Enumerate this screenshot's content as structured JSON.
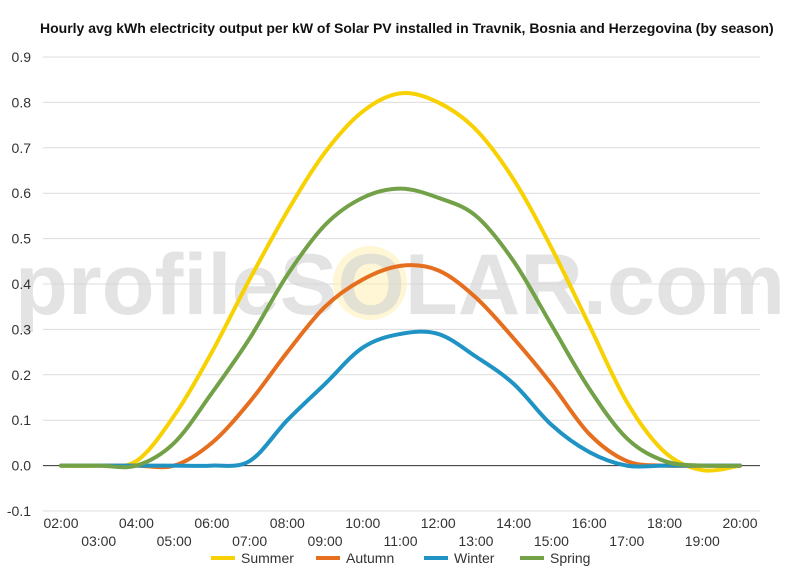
{
  "watermark": {
    "brand": "profileSOLAR.com"
  },
  "chart_data": {
    "type": "line",
    "title": "Hourly avg kWh electricity output per kW of Solar PV installed in Travnik, Bosnia and Herzegovina (by season)",
    "xlabel": "",
    "ylabel": "",
    "ylim": [
      -0.1,
      0.9
    ],
    "y_ticks": [
      "-0.1",
      "0.0",
      "0.1",
      "0.2",
      "0.3",
      "0.4",
      "0.5",
      "0.6",
      "0.7",
      "0.8",
      "0.9"
    ],
    "x_ticks": [
      "02:00",
      "03:00",
      "04:00",
      "05:00",
      "06:00",
      "07:00",
      "08:00",
      "09:00",
      "10:00",
      "11:00",
      "12:00",
      "13:00",
      "14:00",
      "15:00",
      "16:00",
      "17:00",
      "18:00",
      "19:00",
      "20:00"
    ],
    "grid": true,
    "legend_position": "bottom",
    "series": [
      {
        "name": "Summer",
        "color": "#f7d102",
        "values": [
          0.0,
          0.0,
          0.01,
          0.11,
          0.25,
          0.41,
          0.56,
          0.69,
          0.78,
          0.82,
          0.8,
          0.74,
          0.63,
          0.48,
          0.31,
          0.14,
          0.03,
          -0.01,
          0.0
        ]
      },
      {
        "name": "Autumn",
        "color": "#e56f1f",
        "values": [
          0.0,
          0.0,
          0.0,
          0.0,
          0.05,
          0.14,
          0.25,
          0.35,
          0.41,
          0.44,
          0.43,
          0.37,
          0.28,
          0.18,
          0.07,
          0.01,
          0.0,
          0.0,
          0.0
        ]
      },
      {
        "name": "Winter",
        "color": "#1f93c4",
        "values": [
          0.0,
          0.0,
          0.0,
          0.0,
          0.0,
          0.01,
          0.1,
          0.18,
          0.26,
          0.29,
          0.29,
          0.24,
          0.18,
          0.09,
          0.03,
          0.0,
          0.0,
          0.0,
          0.0
        ]
      },
      {
        "name": "Spring",
        "color": "#72a148",
        "values": [
          0.0,
          0.0,
          0.0,
          0.05,
          0.16,
          0.28,
          0.42,
          0.53,
          0.59,
          0.61,
          0.59,
          0.55,
          0.45,
          0.31,
          0.17,
          0.06,
          0.01,
          0.0,
          0.0
        ]
      }
    ]
  }
}
